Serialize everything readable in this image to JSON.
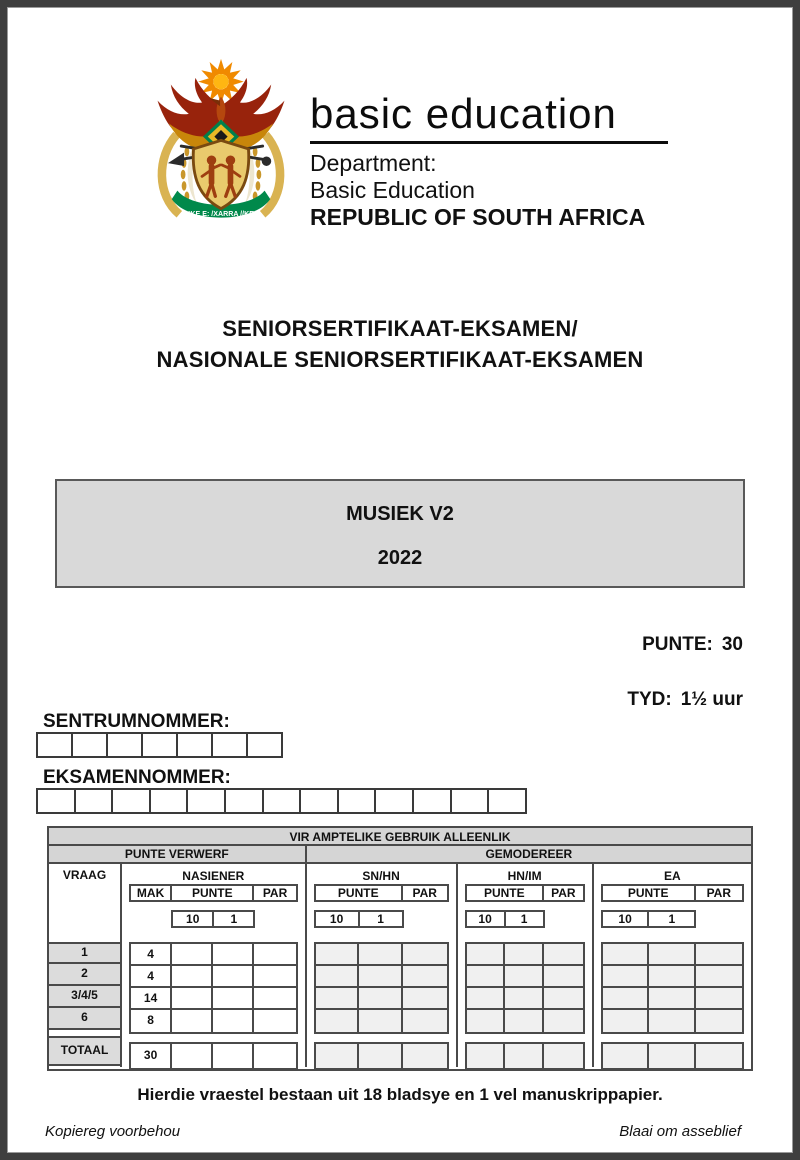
{
  "header": {
    "brand": "basic education",
    "department_label": "Department:",
    "department_name": "Basic Education",
    "country": "REPUBLIC OF SOUTH AFRICA",
    "logo_motto": "!KE E: /XARRA //KE"
  },
  "exam_title": {
    "line1": "SENIORSERTIFIKAAT-EKSAMEN/",
    "line2": "NASIONALE SENIORSERTIFIKAAT-EKSAMEN"
  },
  "subject_box": {
    "subject": "MUSIEK V2",
    "year": "2022"
  },
  "info": {
    "marks_label": "PUNTE:",
    "marks_value": "30",
    "time_label": "TYD:",
    "time_value": "1½ uur"
  },
  "centre": {
    "label": "SENTRUMNOMMER:",
    "boxes": 7
  },
  "exam_no": {
    "label": "EKSAMENNOMMER:",
    "boxes": 13
  },
  "official_table": {
    "title": "VIR AMPTELIKE GEBRUIK ALLEENLIK",
    "group1": "PUNTE VERWERF",
    "group2": "GEMODEREER",
    "vraag_label": "VRAAG",
    "sections": [
      {
        "name": "NASIENER",
        "cols": 4,
        "strip": [
          {
            "label": "MAK",
            "span": 1
          },
          {
            "label": "PUNTE",
            "span": 2
          },
          {
            "label": "PAR",
            "span": 1
          }
        ],
        "scale_offset": 1,
        "scale_span": 2,
        "scale_values": [
          "10",
          "1"
        ],
        "filled": true
      },
      {
        "name": "SN/HN",
        "cols": 3,
        "strip": [
          {
            "label": "PUNTE",
            "span": 2
          },
          {
            "label": "PAR",
            "span": 1
          }
        ],
        "scale_offset": 0,
        "scale_span": 2,
        "scale_values": [
          "10",
          "1"
        ],
        "filled": false
      },
      {
        "name": "HN/IM",
        "cols": 3,
        "strip": [
          {
            "label": "PUNTE",
            "span": 2
          },
          {
            "label": "PAR",
            "span": 1
          }
        ],
        "scale_offset": 0,
        "scale_span": 2,
        "scale_values": [
          "10",
          "1"
        ],
        "filled": false
      },
      {
        "name": "EA",
        "cols": 3,
        "strip": [
          {
            "label": "PUNTE",
            "span": 2
          },
          {
            "label": "PAR",
            "span": 1
          }
        ],
        "scale_offset": 0,
        "scale_span": 2,
        "scale_values": [
          "10",
          "1"
        ],
        "filled": false
      }
    ],
    "rows": [
      {
        "vraag": "1",
        "mak": "4"
      },
      {
        "vraag": "2",
        "mak": "4"
      },
      {
        "vraag": "3/4/5",
        "mak": "14"
      },
      {
        "vraag": "6",
        "mak": "8"
      }
    ],
    "total": {
      "vraag": "TOTAAL",
      "mak": "30"
    }
  },
  "note": "Hierdie vraestel bestaan uit 18 bladsye en 1 vel manuskrippapier.",
  "footer": {
    "left": "Kopiereg voorbehou",
    "right": "Blaai om asseblief"
  },
  "colors": {
    "frame": "#3e3e3e",
    "table_border": "#4a4a4a",
    "header_fill": "#d5d5d5",
    "label_fill": "#dcdcdc",
    "shaded_cell": "#f0f0f0",
    "subject_box_fill": "#d9d9d9",
    "emblem_green": "#00894B",
    "emblem_gold": "#D9B352",
    "emblem_red": "#98230C",
    "emblem_orange": "#F08A00"
  }
}
